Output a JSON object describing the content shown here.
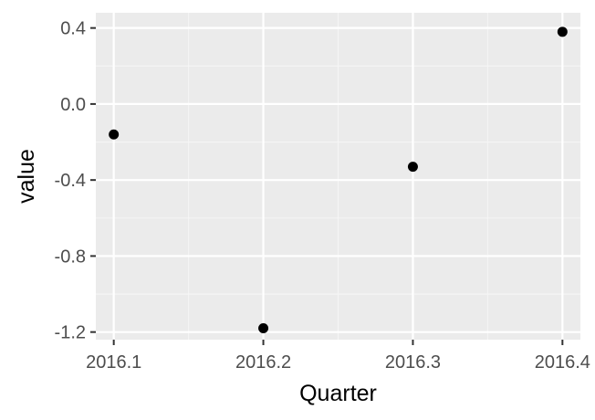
{
  "chart_data": {
    "type": "scatter",
    "title": "",
    "xlabel": "Quarter",
    "ylabel": "value",
    "x_ticks": [
      "2016.1",
      "2016.2",
      "2016.3",
      "2016.4"
    ],
    "y_ticks": [
      "0.4",
      "0.0",
      "-0.4",
      "-0.8",
      "-1.2"
    ],
    "xlim": [
      2016.088,
      2016.412
    ],
    "ylim": [
      -1.24,
      0.48
    ],
    "grid": true,
    "legend": "none",
    "points": [
      {
        "x": 2016.1,
        "y": -0.16
      },
      {
        "x": 2016.2,
        "y": -1.18
      },
      {
        "x": 2016.3,
        "y": -0.33
      },
      {
        "x": 2016.4,
        "y": 0.38
      }
    ],
    "colors": {
      "panel_background": "#ebebeb",
      "grid_major": "#ffffff",
      "grid_minor": "#f5f5f5",
      "point": "#000000",
      "tick_mark": "#333333"
    }
  }
}
